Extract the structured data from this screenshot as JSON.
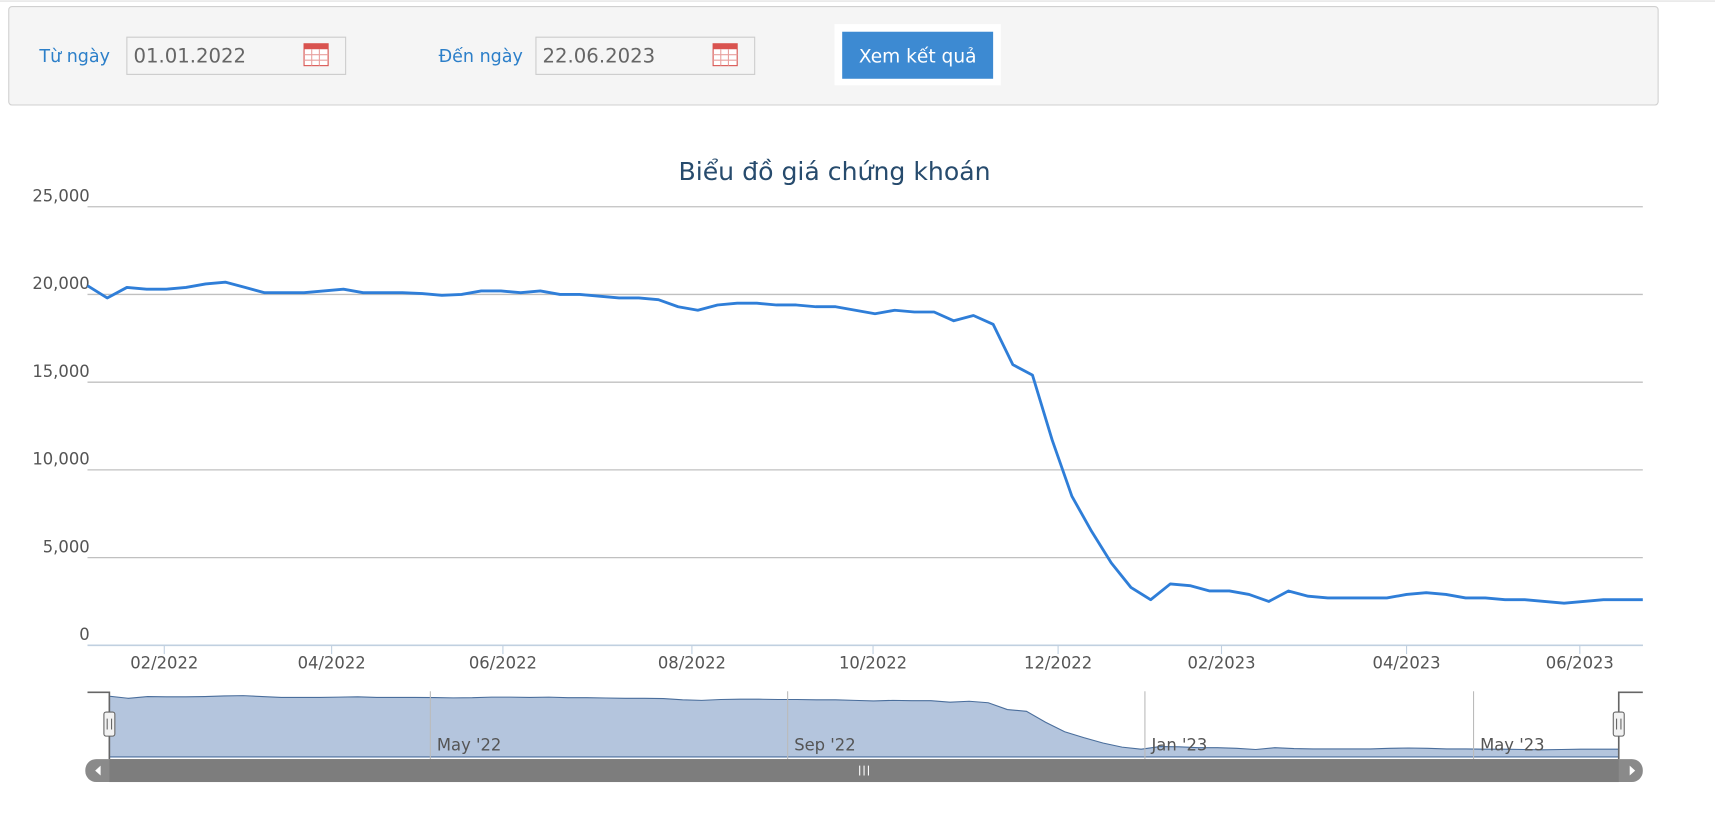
{
  "form": {
    "from_label": "Từ ngày",
    "from_value": "01.01.2022",
    "to_label": "Đến ngày",
    "to_value": "22.06.2023",
    "submit": "Xem kết quả"
  },
  "chart_data": {
    "type": "line",
    "title": "Biểu đồ giá chứng khoán",
    "color": "#2f7ed8",
    "grid": true,
    "values": [
      20500,
      19800,
      20400,
      20300,
      20300,
      20400,
      20600,
      20700,
      20400,
      20100,
      20100,
      20100,
      20200,
      20300,
      20100,
      20100,
      20100,
      20050,
      19950,
      20000,
      20200,
      20200,
      20100,
      20200,
      20000,
      20000,
      19900,
      19800,
      19800,
      19700,
      19300,
      19100,
      19400,
      19500,
      19500,
      19400,
      19400,
      19300,
      19300,
      19100,
      18900,
      19100,
      19000,
      19000,
      18500,
      18800,
      18300,
      16000,
      15400,
      11700,
      8500,
      6500,
      4700,
      3300,
      2600,
      3500,
      3400,
      3100,
      3100,
      2900,
      2500,
      3100,
      2800,
      2700,
      2700,
      2700,
      2700,
      2900,
      3000,
      2900,
      2700,
      2700,
      2600,
      2600,
      2500,
      2400,
      2500,
      2600,
      2600,
      2600
    ],
    "ylim": [
      0,
      25000
    ],
    "yticks": [
      0,
      {
        "value": 5000,
        "label": "5,000"
      },
      {
        "value": 10000,
        "label": "10,000"
      },
      {
        "value": 15000,
        "label": "15,000"
      },
      {
        "value": 20000,
        "label": "20,000"
      },
      {
        "value": 25000,
        "label": "25,000"
      }
    ],
    "xlim": [
      0,
      79
    ],
    "xticks": [
      {
        "value": 3.9,
        "label": "02/2022"
      },
      {
        "value": 12.4,
        "label": "04/2022"
      },
      {
        "value": 21.1,
        "label": "06/2022"
      },
      {
        "value": 30.7,
        "label": "08/2022"
      },
      {
        "value": 39.9,
        "label": "10/2022"
      },
      {
        "value": 49.3,
        "label": "12/2022"
      },
      {
        "value": 57.6,
        "label": "02/2023"
      },
      {
        "value": 67,
        "label": "04/2023"
      },
      {
        "value": 75.8,
        "label": "06/2023"
      }
    ],
    "navigator_ticks": [
      {
        "value": 16.8,
        "label": "May '22"
      },
      {
        "value": 35.5,
        "label": "Sep '22"
      },
      {
        "value": 54.2,
        "label": "Jan '23"
      },
      {
        "value": 71.4,
        "label": "May '23"
      }
    ]
  }
}
